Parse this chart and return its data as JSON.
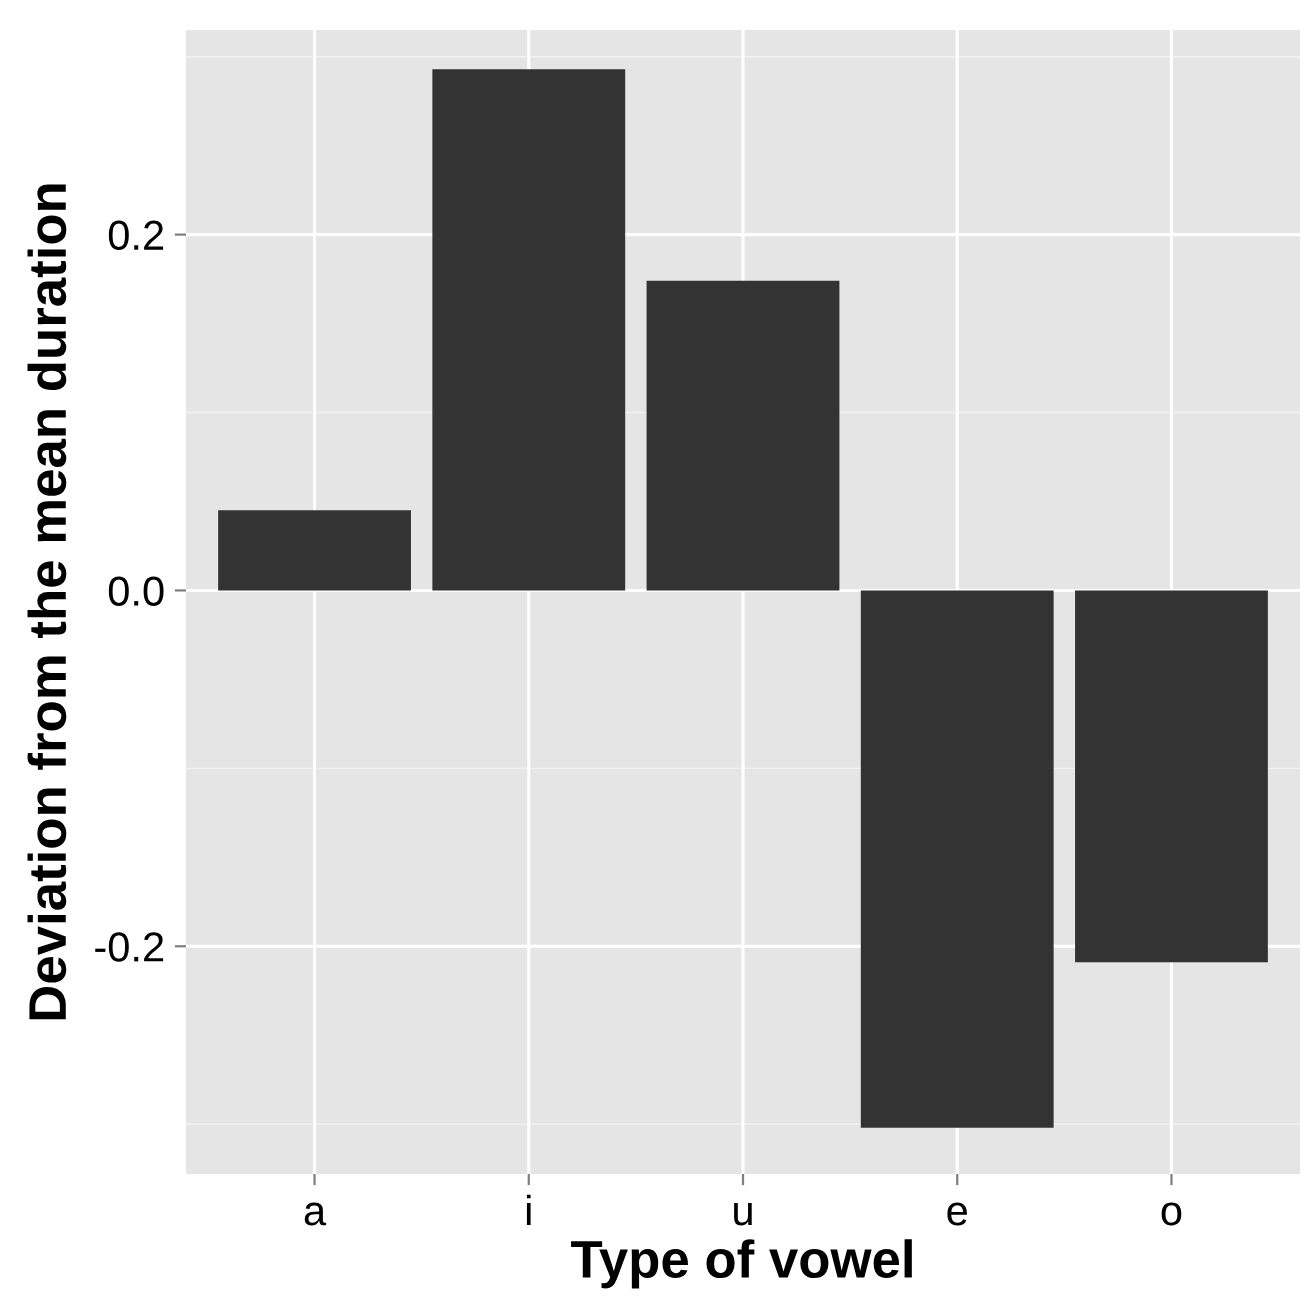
{
  "chart_data": {
    "type": "bar",
    "xlabel": "Type of vowel",
    "ylabel": "Deviation from the mean duration",
    "categories": [
      "a",
      "i",
      "u",
      "e",
      "o"
    ],
    "values": [
      0.045,
      0.293,
      0.174,
      -0.302,
      -0.209
    ],
    "color": "#333333",
    "ylim": [
      -0.328,
      0.315
    ],
    "yticks": [
      {
        "value": -0.2,
        "label": "-0.2"
      },
      {
        "value": 0.0,
        "label": "0.0"
      },
      0.2
    ],
    "grid": true
  }
}
